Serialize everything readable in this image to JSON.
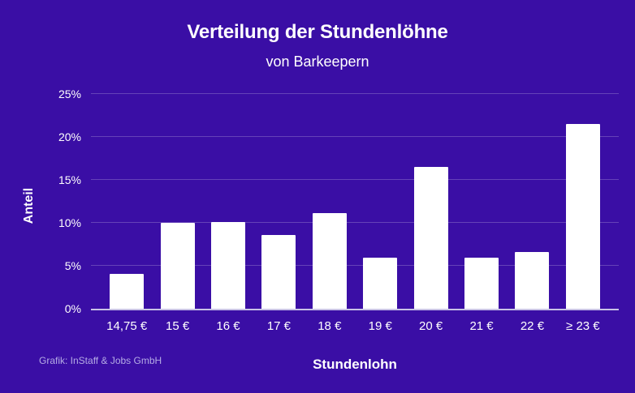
{
  "colors": {
    "background": "#3A0EA5",
    "bar": "#FFFFFF",
    "text": "#FFFFFF",
    "grid_line": "#FFFFFF38",
    "axis_line": "#C9C3E6",
    "attribution_text": "#B5ACE5"
  },
  "attribution": "Grafik: InStaff & Jobs GmbH",
  "chart_data": {
    "type": "bar",
    "title": "Verteilung der Stundenlöhne",
    "subtitle": "von Barkeepern",
    "xlabel": "Stundenlohn",
    "ylabel": "Anteil",
    "categories": [
      "14,75 €",
      "15 €",
      "16 €",
      "17 €",
      "18 €",
      "19 €",
      "20 €",
      "21 €",
      "22 €",
      "≥ 23 €"
    ],
    "values": [
      4.1,
      10.0,
      10.1,
      8.6,
      11.1,
      5.9,
      16.5,
      5.9,
      6.6,
      21.5
    ],
    "ylim": [
      0,
      25
    ],
    "yticks": [
      0,
      5,
      10,
      15,
      20,
      25
    ],
    "ytick_suffix": "%",
    "grid": true,
    "legend": "none",
    "bar_color": "#FFFFFF"
  }
}
